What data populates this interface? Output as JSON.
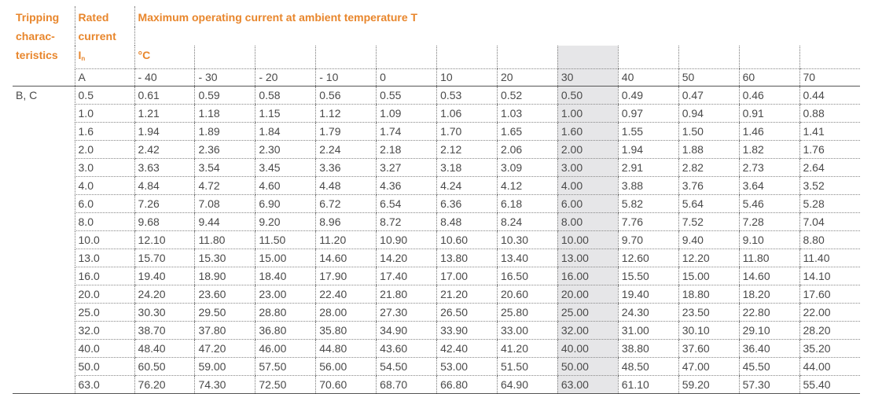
{
  "header": {
    "col1": [
      "Tripping",
      "charac-",
      "teristics"
    ],
    "col2": [
      "Rated",
      "current"
    ],
    "col2_symbol": "I",
    "col2_sub": "n",
    "col2_unit": "A",
    "span_title": "Maximum operating current at ambient temperature T",
    "temp_unit": "°C",
    "temperatures": [
      "- 40",
      "- 30",
      "- 20",
      "- 10",
      "0",
      "10",
      "20",
      "30",
      "40",
      "50",
      "60",
      "70"
    ]
  },
  "highlight_column": "30",
  "characteristic": "B, C",
  "rows": [
    {
      "rated": "0.5",
      "values": [
        "0.61",
        "0.59",
        "0.58",
        "0.56",
        "0.55",
        "0.53",
        "0.52",
        "0.50",
        "0.49",
        "0.47",
        "0.46",
        "0.44"
      ]
    },
    {
      "rated": "1.0",
      "values": [
        "1.21",
        "1.18",
        "1.15",
        "1.12",
        "1.09",
        "1.06",
        "1.03",
        "1.00",
        "0.97",
        "0.94",
        "0.91",
        "0.88"
      ]
    },
    {
      "rated": "1.6",
      "values": [
        "1.94",
        "1.89",
        "1.84",
        "1.79",
        "1.74",
        "1.70",
        "1.65",
        "1.60",
        "1.55",
        "1.50",
        "1.46",
        "1.41"
      ]
    },
    {
      "rated": "2.0",
      "values": [
        "2.42",
        "2.36",
        "2.30",
        "2.24",
        "2.18",
        "2.12",
        "2.06",
        "2.00",
        "1.94",
        "1.88",
        "1.82",
        "1.76"
      ]
    },
    {
      "rated": "3.0",
      "values": [
        "3.63",
        "3.54",
        "3.45",
        "3.36",
        "3.27",
        "3.18",
        "3.09",
        "3.00",
        "2.91",
        "2.82",
        "2.73",
        "2.64"
      ]
    },
    {
      "rated": "4.0",
      "values": [
        "4.84",
        "4.72",
        "4.60",
        "4.48",
        "4.36",
        "4.24",
        "4.12",
        "4.00",
        "3.88",
        "3.76",
        "3.64",
        "3.52"
      ]
    },
    {
      "rated": "6.0",
      "values": [
        "7.26",
        "7.08",
        "6.90",
        "6.72",
        "6.54",
        "6.36",
        "6.18",
        "6.00",
        "5.82",
        "5.64",
        "5.46",
        "5.28"
      ]
    },
    {
      "rated": "8.0",
      "values": [
        "9.68",
        "9.44",
        "9.20",
        "8.96",
        "8.72",
        "8.48",
        "8.24",
        "8.00",
        "7.76",
        "7.52",
        "7.28",
        "7.04"
      ]
    },
    {
      "rated": "10.0",
      "values": [
        "12.10",
        "11.80",
        "11.50",
        "11.20",
        "10.90",
        "10.60",
        "10.30",
        "10.00",
        "9.70",
        "9.40",
        "9.10",
        "8.80"
      ]
    },
    {
      "rated": "13.0",
      "values": [
        "15.70",
        "15.30",
        "15.00",
        "14.60",
        "14.20",
        "13.80",
        "13.40",
        "13.00",
        "12.60",
        "12.20",
        "11.80",
        "11.40"
      ]
    },
    {
      "rated": "16.0",
      "values": [
        "19.40",
        "18.90",
        "18.40",
        "17.90",
        "17.40",
        "17.00",
        "16.50",
        "16.00",
        "15.50",
        "15.00",
        "14.60",
        "14.10"
      ]
    },
    {
      "rated": "20.0",
      "values": [
        "24.20",
        "23.60",
        "23.00",
        "22.40",
        "21.80",
        "21.20",
        "20.60",
        "20.00",
        "19.40",
        "18.80",
        "18.20",
        "17.60"
      ]
    },
    {
      "rated": "25.0",
      "values": [
        "30.30",
        "29.50",
        "28.80",
        "28.00",
        "27.30",
        "26.50",
        "25.80",
        "25.00",
        "24.30",
        "23.50",
        "22.80",
        "22.00"
      ]
    },
    {
      "rated": "32.0",
      "values": [
        "38.70",
        "37.80",
        "36.80",
        "35.80",
        "34.90",
        "33.90",
        "33.00",
        "32.00",
        "31.00",
        "30.10",
        "29.10",
        "28.20"
      ]
    },
    {
      "rated": "40.0",
      "values": [
        "48.40",
        "47.20",
        "46.00",
        "44.80",
        "43.60",
        "42.40",
        "41.20",
        "40.00",
        "38.80",
        "37.60",
        "36.40",
        "35.20"
      ]
    },
    {
      "rated": "50.0",
      "values": [
        "60.50",
        "59.00",
        "57.50",
        "56.00",
        "54.50",
        "53.00",
        "51.50",
        "50.00",
        "48.50",
        "47.00",
        "45.50",
        "44.00"
      ]
    },
    {
      "rated": "63.0",
      "values": [
        "76.20",
        "74.30",
        "72.50",
        "70.60",
        "68.70",
        "66.80",
        "64.90",
        "63.00",
        "61.10",
        "59.20",
        "57.30",
        "55.40"
      ]
    }
  ]
}
